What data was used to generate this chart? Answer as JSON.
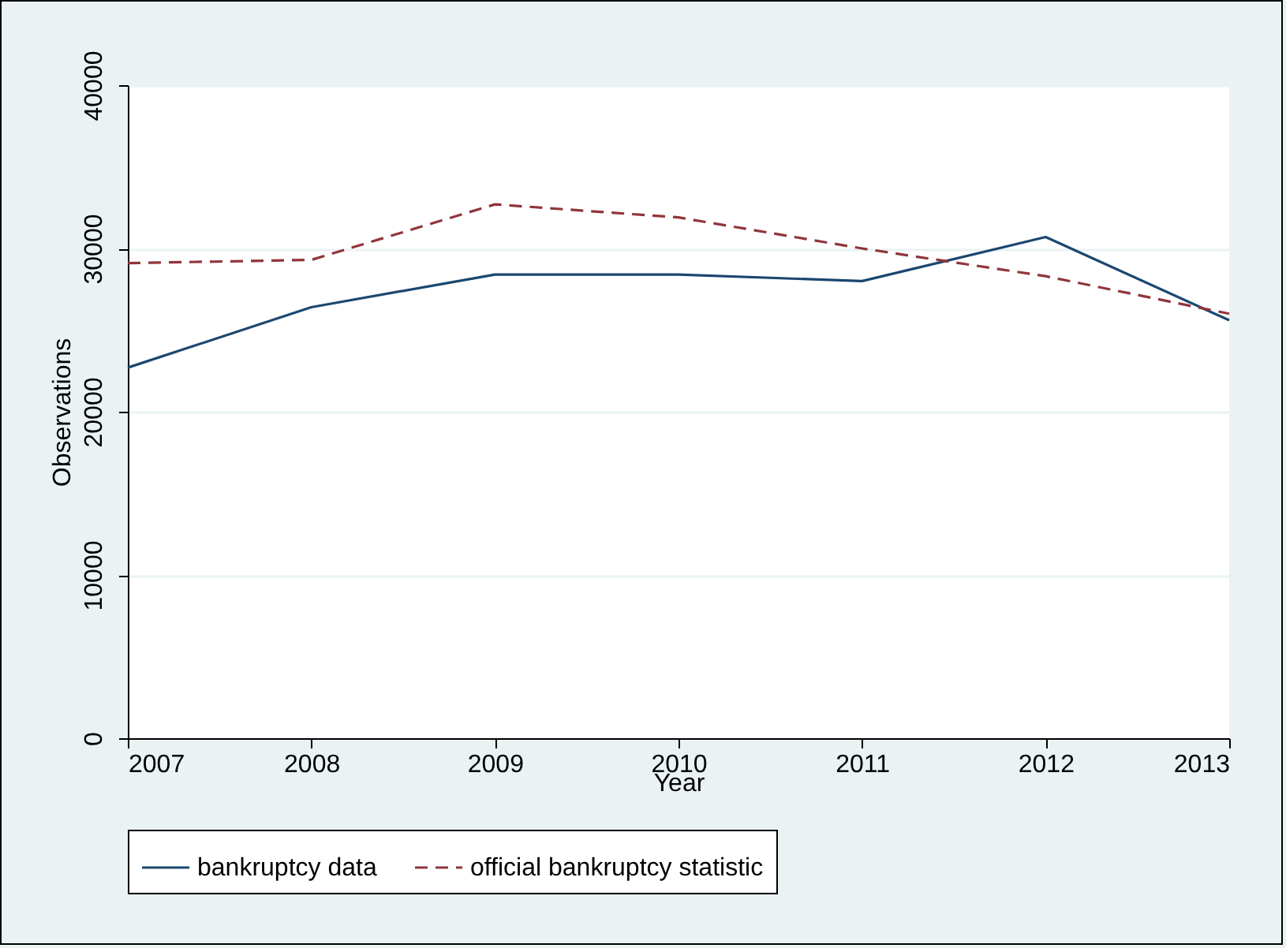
{
  "chart_data": {
    "type": "line",
    "xlabel": "Year",
    "ylabel": "Observations",
    "x": [
      2007,
      2008,
      2009,
      2010,
      2011,
      2012,
      2013
    ],
    "xlim": [
      2007,
      2013
    ],
    "xticks": [
      2007,
      2008,
      2009,
      2010,
      2011,
      2012,
      2013
    ],
    "ylim": [
      0,
      40000
    ],
    "yticks": [
      0,
      10000,
      20000,
      30000,
      40000
    ],
    "grid": "y",
    "legend": "bottom",
    "series": [
      {
        "name": "bankruptcy data",
        "color": "#1a476f",
        "line_style": "solid",
        "values": [
          22700,
          26400,
          28400,
          28400,
          28000,
          30700,
          25600
        ]
      },
      {
        "name": "official bankruptcy statistic",
        "color": "#90353b",
        "line_style": "dashed",
        "values": [
          29100,
          29300,
          32700,
          31900,
          30000,
          28300,
          26000
        ]
      }
    ]
  }
}
